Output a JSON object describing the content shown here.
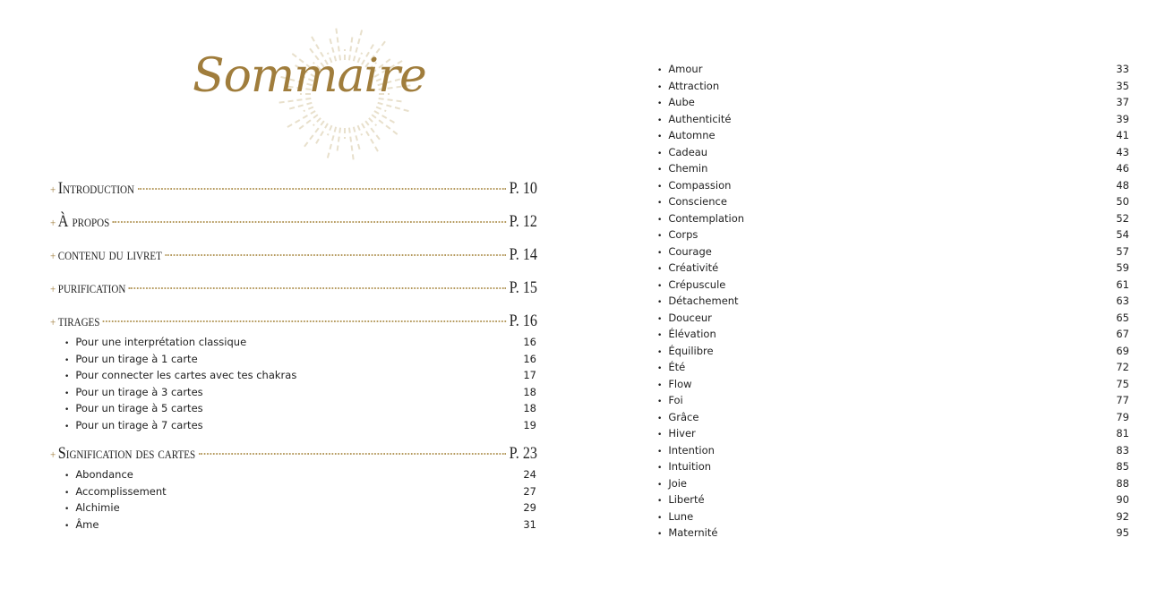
{
  "title": "Sommaire",
  "sections": [
    {
      "label": "Introduction",
      "page": "P. 10"
    },
    {
      "label": "À propos",
      "page": "P. 12"
    },
    {
      "label": "contenu du livret",
      "page": "P. 14"
    },
    {
      "label": "purification",
      "page": "P. 15"
    },
    {
      "label": "tirages",
      "page": "P. 16"
    },
    {
      "label": "Signification des cartes",
      "page": "P. 23"
    }
  ],
  "tirages": [
    {
      "label": "Pour une interprétation classique",
      "page": "16"
    },
    {
      "label": "Pour un tirage à 1 carte",
      "page": "16"
    },
    {
      "label": "Pour connecter les cartes avec tes chakras",
      "page": "17"
    },
    {
      "label": "Pour un tirage à 3 cartes",
      "page": "18"
    },
    {
      "label": "Pour un tirage à 5 cartes",
      "page": "18"
    },
    {
      "label": "Pour un tirage à 7 cartes",
      "page": "19"
    }
  ],
  "cartes_left": [
    {
      "label": "Abondance",
      "page": "24"
    },
    {
      "label": "Accomplissement",
      "page": "27"
    },
    {
      "label": "Alchimie",
      "page": "29"
    },
    {
      "label": "Âme",
      "page": "31"
    }
  ],
  "cartes_right": [
    {
      "label": "Amour",
      "page": "33"
    },
    {
      "label": "Attraction",
      "page": "35"
    },
    {
      "label": "Aube",
      "page": "37"
    },
    {
      "label": "Authenticité",
      "page": "39"
    },
    {
      "label": "Automne",
      "page": "41"
    },
    {
      "label": "Cadeau",
      "page": "43"
    },
    {
      "label": "Chemin",
      "page": "46"
    },
    {
      "label": "Compassion",
      "page": "48"
    },
    {
      "label": "Conscience",
      "page": "50"
    },
    {
      "label": "Contemplation",
      "page": "52"
    },
    {
      "label": "Corps",
      "page": "54"
    },
    {
      "label": "Courage",
      "page": "57"
    },
    {
      "label": "Créativité",
      "page": "59"
    },
    {
      "label": "Crépuscule",
      "page": "61"
    },
    {
      "label": "Détachement",
      "page": "63"
    },
    {
      "label": "Douceur",
      "page": "65"
    },
    {
      "label": "Élévation",
      "page": "67"
    },
    {
      "label": "Équilibre",
      "page": "69"
    },
    {
      "label": "Été",
      "page": "72"
    },
    {
      "label": "Flow",
      "page": "75"
    },
    {
      "label": "Foi",
      "page": "77"
    },
    {
      "label": "Grâce",
      "page": "79"
    },
    {
      "label": "Hiver",
      "page": "81"
    },
    {
      "label": "Intention",
      "page": "83"
    },
    {
      "label": "Intuition",
      "page": "85"
    },
    {
      "label": "Joie",
      "page": "88"
    },
    {
      "label": "Liberté",
      "page": "90"
    },
    {
      "label": "Lune",
      "page": "92"
    },
    {
      "label": "Maternité",
      "page": "95"
    }
  ],
  "colors": {
    "accent": "#a07d3c",
    "rays": "#e8e0cc"
  }
}
